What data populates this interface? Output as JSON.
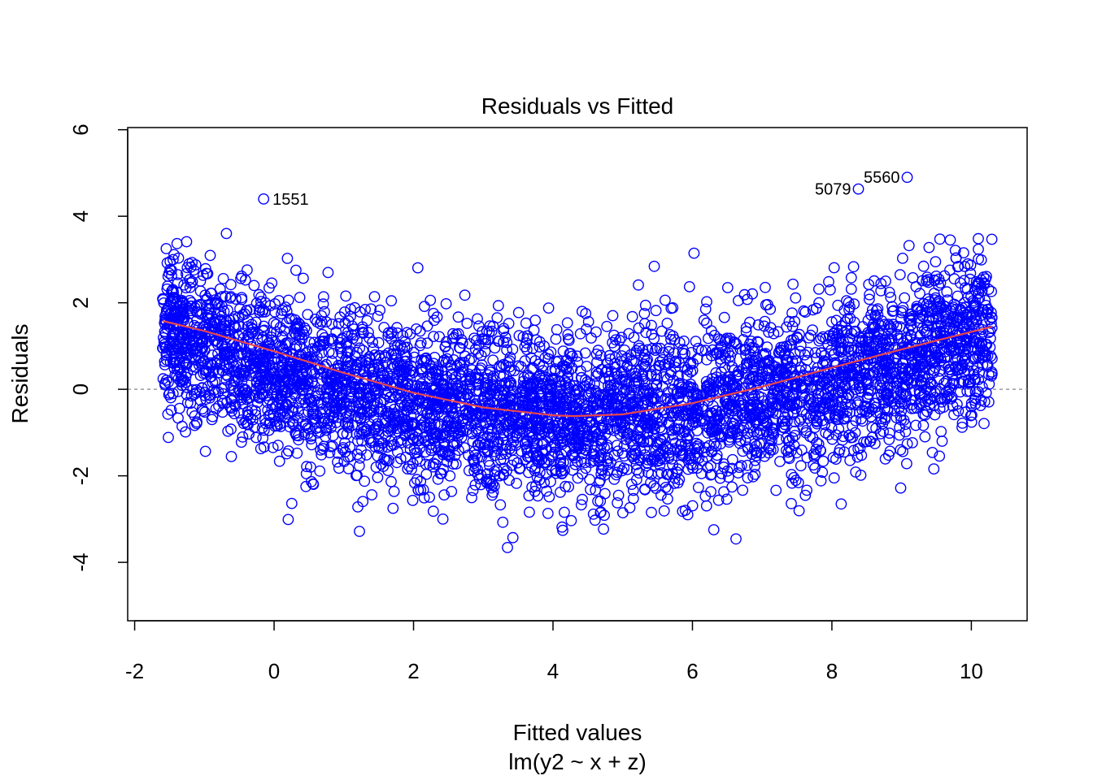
{
  "chart_data": {
    "type": "scatter",
    "title": "Residuals vs Fitted",
    "xlabel": "Fitted values",
    "xlabel_sub": "lm(y2 ~ x + z)",
    "ylabel": "Residuals",
    "xlim": [
      -2.1,
      10.8
    ],
    "ylim": [
      -5.35,
      6.05
    ],
    "xticks": [
      -2,
      0,
      2,
      4,
      6,
      8,
      10
    ],
    "xtick_labels": [
      "-2",
      "0",
      "2",
      "4",
      "6",
      "8",
      "10"
    ],
    "yticks": [
      -4,
      -2,
      0,
      2,
      4,
      6
    ],
    "ytick_labels": [
      "-4",
      "-2",
      "0",
      "2",
      "4",
      "6"
    ],
    "reference_line_y": 0,
    "grid": false,
    "colors": {
      "points": "#0000ff",
      "smoother": "#e8474c",
      "reference": "#999999",
      "axes": "#000000"
    },
    "points_generation": {
      "n": 5000,
      "x_range": [
        -1.6,
        10.3
      ],
      "note_model": "quadratic trend centered near 4.3"
    },
    "smoother": {
      "x": [
        -1.6,
        -1.0,
        0.0,
        1.0,
        2.0,
        3.0,
        4.0,
        4.3,
        5.0,
        6.0,
        7.0,
        8.0,
        9.0,
        10.3
      ],
      "y": [
        1.58,
        1.35,
        0.88,
        0.38,
        -0.08,
        -0.42,
        -0.6,
        -0.62,
        -0.58,
        -0.32,
        0.06,
        0.5,
        0.92,
        1.45
      ]
    },
    "labeled_points": [
      {
        "label": "1551",
        "x": -0.15,
        "y": 4.4
      },
      {
        "label": "5079",
        "x": 8.38,
        "y": 4.63
      },
      {
        "label": "5560",
        "x": 9.08,
        "y": 4.9
      }
    ]
  }
}
